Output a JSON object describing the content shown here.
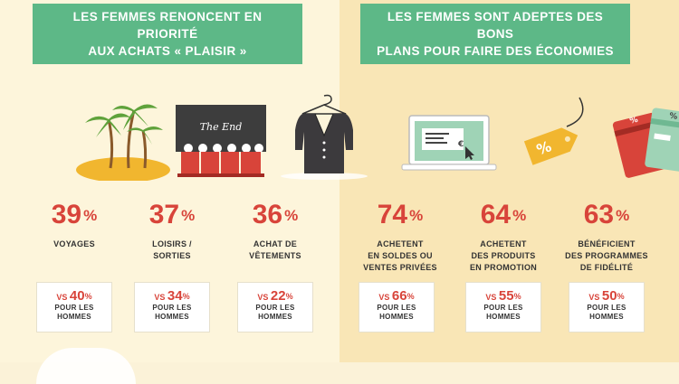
{
  "left": {
    "banner_line1": "LES FEMMES RENONCENT EN PRIORITÉ",
    "banner_line2": "AUX ACHATS « PLAISIR »",
    "items": [
      {
        "icon": "island-palm-trees-icon",
        "percent": "39",
        "unit": "%",
        "label_line1": "VOYAGES",
        "label_line2": "",
        "label_line3": "",
        "vs_prefix": "VS",
        "vs_value": "40",
        "vs_unit": "%",
        "vs_sub1": "POUR LES",
        "vs_sub2": "HOMMES"
      },
      {
        "icon": "cinema-screen-icon",
        "screen_text": "The End",
        "percent": "37",
        "unit": "%",
        "label_line1": "LOISIRS /",
        "label_line2": "SORTIES",
        "label_line3": "",
        "vs_prefix": "VS",
        "vs_value": "34",
        "vs_unit": "%",
        "vs_sub1": "POUR LES",
        "vs_sub2": "HOMMES"
      },
      {
        "icon": "jacket-hanger-icon",
        "percent": "36",
        "unit": "%",
        "label_line1": "ACHAT DE",
        "label_line2": "VÊTEMENTS",
        "label_line3": "",
        "vs_prefix": "VS",
        "vs_value": "22",
        "vs_unit": "%",
        "vs_sub1": "POUR LES",
        "vs_sub2": "HOMMES"
      }
    ]
  },
  "right": {
    "banner_line1": "LES FEMMES SONT ADEPTES DES BONS",
    "banner_line2": "PLANS POUR FAIRE DES ÉCONOMIES",
    "items": [
      {
        "icon": "laptop-shopping-icon",
        "screen_symbol": "€",
        "percent": "74",
        "unit": "%",
        "label_line1": "ACHETENT",
        "label_line2": "EN SOLDES OU",
        "label_line3": "VENTES PRIVÉES",
        "vs_prefix": "VS",
        "vs_value": "66",
        "vs_unit": "%",
        "vs_sub1": "POUR LES",
        "vs_sub2": "HOMMES"
      },
      {
        "icon": "price-tag-icon",
        "tag_symbol": "%",
        "percent": "64",
        "unit": "%",
        "label_line1": "ACHETENT",
        "label_line2": "DES PRODUITS",
        "label_line3": "EN PROMOTION",
        "vs_prefix": "VS",
        "vs_value": "55",
        "vs_unit": "%",
        "vs_sub1": "POUR LES",
        "vs_sub2": "HOMMES"
      },
      {
        "icon": "loyalty-cards-icon",
        "card_symbol": "%",
        "percent": "63",
        "unit": "%",
        "label_line1": "BÉNÉFICIENT",
        "label_line2": "DES PROGRAMMES",
        "label_line3": "DE FIDÉLITÉ",
        "vs_prefix": "VS",
        "vs_value": "50",
        "vs_unit": "%",
        "vs_sub1": "POUR LES",
        "vs_sub2": "HOMMES"
      }
    ]
  },
  "colors": {
    "accent_red": "#d8443a",
    "banner_green": "#5db887",
    "left_bg": "#fdf5db",
    "right_bg": "#f9e6b6"
  }
}
